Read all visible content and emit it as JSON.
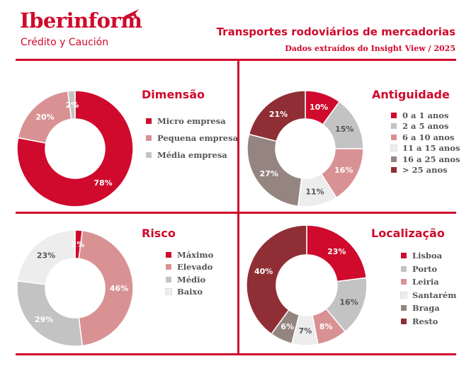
{
  "brand": {
    "name": "Iberinform",
    "tagline": "Crédito y Caución",
    "color": "#cf0a2c"
  },
  "header": {
    "title": "Transportes rodoviários de mercadorias",
    "subtitle": "Dados extraídos do Insight View / 2025"
  },
  "chart_data": [
    {
      "type": "pie",
      "variant": "donut",
      "title": "Dimensão",
      "legend_position": "right",
      "categories": [
        "Micro empresa",
        "Pequena empresa",
        "Média empresa"
      ],
      "values": [
        78,
        20,
        2
      ],
      "labels": [
        "78%",
        "20%",
        "2%"
      ],
      "colors": [
        "#cf0a2c",
        "#d99294",
        "#c3c3c3"
      ],
      "label_colors": [
        "#ffffff",
        "#ffffff",
        "#ffffff"
      ]
    },
    {
      "type": "pie",
      "variant": "donut",
      "title": "Antiguidade",
      "legend_position": "right",
      "categories": [
        "0 a 1 anos",
        "2 a 5 anos",
        "6 a 10 anos",
        "11 a 15 anos",
        "16 a 25 anos",
        "> 25 anos"
      ],
      "values": [
        10,
        15,
        16,
        11,
        27,
        21
      ],
      "labels": [
        "10%",
        "15%",
        "16%",
        "11%",
        "27%",
        "21%"
      ],
      "colors": [
        "#cf0a2c",
        "#c3c3c3",
        "#d99294",
        "#ededed",
        "#958580",
        "#8f2f35"
      ],
      "label_colors": [
        "#ffffff",
        "#555555",
        "#ffffff",
        "#555555",
        "#ffffff",
        "#ffffff"
      ]
    },
    {
      "type": "pie",
      "variant": "donut",
      "title": "Risco",
      "legend_position": "right",
      "categories": [
        "Máximo",
        "Elevado",
        "Médio",
        "Baixo"
      ],
      "values": [
        2,
        46,
        29,
        23
      ],
      "labels": [
        "2%",
        "46%",
        "29%",
        "23%"
      ],
      "colors": [
        "#cf0a2c",
        "#d99294",
        "#c3c3c3",
        "#ededed"
      ],
      "label_colors": [
        "#ffffff",
        "#ffffff",
        "#ffffff",
        "#555555"
      ]
    },
    {
      "type": "pie",
      "variant": "donut",
      "title": "Localização",
      "legend_position": "right",
      "categories": [
        "Lisboa",
        "Porto",
        "Leiria",
        "Santarém",
        "Braga",
        "Resto"
      ],
      "values": [
        23,
        16,
        8,
        7,
        6,
        40
      ],
      "labels": [
        "23%",
        "16%",
        "8%",
        "7%",
        "6%",
        "40%"
      ],
      "colors": [
        "#cf0a2c",
        "#c3c3c3",
        "#d99294",
        "#ededed",
        "#958580",
        "#8f2f35"
      ],
      "label_colors": [
        "#ffffff",
        "#555555",
        "#ffffff",
        "#555555",
        "#ffffff",
        "#ffffff"
      ]
    }
  ]
}
